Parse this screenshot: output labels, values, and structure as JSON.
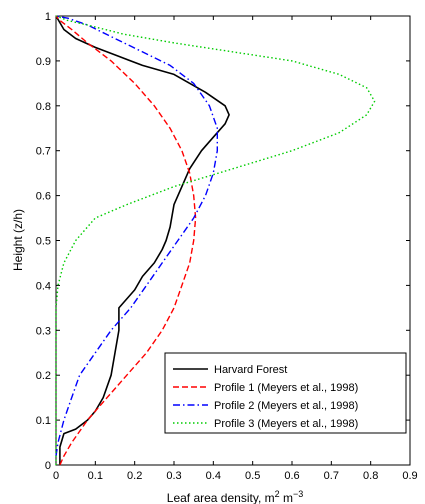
{
  "chart_data": {
    "type": "line",
    "title": "",
    "xlabel": "Leaf area density, m",
    "xlabel_sup1": "2",
    "xlabel_mid": " m",
    "xlabel_sup2": "−3",
    "ylabel": "Height (z/h)",
    "xlim": [
      0,
      0.9
    ],
    "ylim": [
      0,
      1
    ],
    "x_ticks": [
      "0",
      "0.1",
      "0.2",
      "0.3",
      "0.4",
      "0.5",
      "0.6",
      "0.7",
      "0.8",
      "0.9"
    ],
    "y_ticks": [
      "0",
      "0.1",
      "0.2",
      "0.3",
      "0.4",
      "0.5",
      "0.6",
      "0.7",
      "0.8",
      "0.9",
      "1"
    ],
    "grid": false,
    "legend_position": "bottom-right",
    "series": [
      {
        "name": "Harvard Forest",
        "color": "#000000",
        "style": "solid",
        "points": [
          [
            0.01,
            0
          ],
          [
            0.01,
            0.04
          ],
          [
            0.02,
            0.07
          ],
          [
            0.05,
            0.08
          ],
          [
            0.08,
            0.1
          ],
          [
            0.1,
            0.12
          ],
          [
            0.12,
            0.15
          ],
          [
            0.14,
            0.2
          ],
          [
            0.15,
            0.25
          ],
          [
            0.16,
            0.3
          ],
          [
            0.16,
            0.35
          ],
          [
            0.18,
            0.37
          ],
          [
            0.2,
            0.39
          ],
          [
            0.22,
            0.42
          ],
          [
            0.25,
            0.45
          ],
          [
            0.27,
            0.48
          ],
          [
            0.28,
            0.5
          ],
          [
            0.29,
            0.53
          ],
          [
            0.3,
            0.58
          ],
          [
            0.32,
            0.62
          ],
          [
            0.34,
            0.66
          ],
          [
            0.37,
            0.7
          ],
          [
            0.4,
            0.73
          ],
          [
            0.43,
            0.76
          ],
          [
            0.44,
            0.78
          ],
          [
            0.43,
            0.8
          ],
          [
            0.38,
            0.83
          ],
          [
            0.3,
            0.87
          ],
          [
            0.22,
            0.89
          ],
          [
            0.16,
            0.91
          ],
          [
            0.1,
            0.93
          ],
          [
            0.05,
            0.95
          ],
          [
            0.02,
            0.97
          ],
          [
            0,
            1.0
          ]
        ]
      },
      {
        "name": "Profile 1 (Meyers et al., 1998)",
        "color": "#ff0000",
        "style": "dashed",
        "points": [
          [
            0.01,
            0
          ],
          [
            0.02,
            0.02
          ],
          [
            0.04,
            0.05
          ],
          [
            0.08,
            0.1
          ],
          [
            0.13,
            0.15
          ],
          [
            0.18,
            0.2
          ],
          [
            0.23,
            0.25
          ],
          [
            0.27,
            0.3
          ],
          [
            0.3,
            0.35
          ],
          [
            0.32,
            0.4
          ],
          [
            0.34,
            0.45
          ],
          [
            0.35,
            0.5
          ],
          [
            0.355,
            0.55
          ],
          [
            0.35,
            0.6
          ],
          [
            0.34,
            0.65
          ],
          [
            0.32,
            0.7
          ],
          [
            0.29,
            0.75
          ],
          [
            0.25,
            0.8
          ],
          [
            0.2,
            0.85
          ],
          [
            0.14,
            0.9
          ],
          [
            0.08,
            0.94
          ],
          [
            0.04,
            0.97
          ],
          [
            0.01,
            0.99
          ],
          [
            0,
            1.0
          ]
        ]
      },
      {
        "name": "Profile 2 (Meyers et al., 1998)",
        "color": "#0000ff",
        "style": "dashdot",
        "points": [
          [
            0,
            0.02
          ],
          [
            0.005,
            0.05
          ],
          [
            0.02,
            0.1
          ],
          [
            0.04,
            0.15
          ],
          [
            0.06,
            0.2
          ],
          [
            0.1,
            0.25
          ],
          [
            0.14,
            0.3
          ],
          [
            0.19,
            0.35
          ],
          [
            0.23,
            0.4
          ],
          [
            0.27,
            0.45
          ],
          [
            0.31,
            0.5
          ],
          [
            0.35,
            0.55
          ],
          [
            0.38,
            0.6
          ],
          [
            0.4,
            0.65
          ],
          [
            0.41,
            0.7
          ],
          [
            0.41,
            0.75
          ],
          [
            0.39,
            0.8
          ],
          [
            0.35,
            0.85
          ],
          [
            0.29,
            0.89
          ],
          [
            0.22,
            0.92
          ],
          [
            0.15,
            0.95
          ],
          [
            0.08,
            0.98
          ],
          [
            0.03,
            0.995
          ],
          [
            0,
            1.0
          ]
        ]
      },
      {
        "name": "Profile 3 (Meyers et al., 1998)",
        "color": "#00cc00",
        "style": "dotted",
        "points": [
          [
            0,
            0
          ],
          [
            0,
            0.35
          ],
          [
            0.005,
            0.4
          ],
          [
            0.02,
            0.45
          ],
          [
            0.05,
            0.5
          ],
          [
            0.1,
            0.55
          ],
          [
            0.18,
            0.58
          ],
          [
            0.3,
            0.62
          ],
          [
            0.45,
            0.66
          ],
          [
            0.6,
            0.7
          ],
          [
            0.72,
            0.74
          ],
          [
            0.79,
            0.78
          ],
          [
            0.81,
            0.81
          ],
          [
            0.79,
            0.84
          ],
          [
            0.72,
            0.87
          ],
          [
            0.6,
            0.9
          ],
          [
            0.45,
            0.92
          ],
          [
            0.3,
            0.94
          ],
          [
            0.17,
            0.96
          ],
          [
            0.08,
            0.98
          ],
          [
            0.03,
            0.99
          ],
          [
            0,
            1.0
          ]
        ]
      }
    ]
  }
}
